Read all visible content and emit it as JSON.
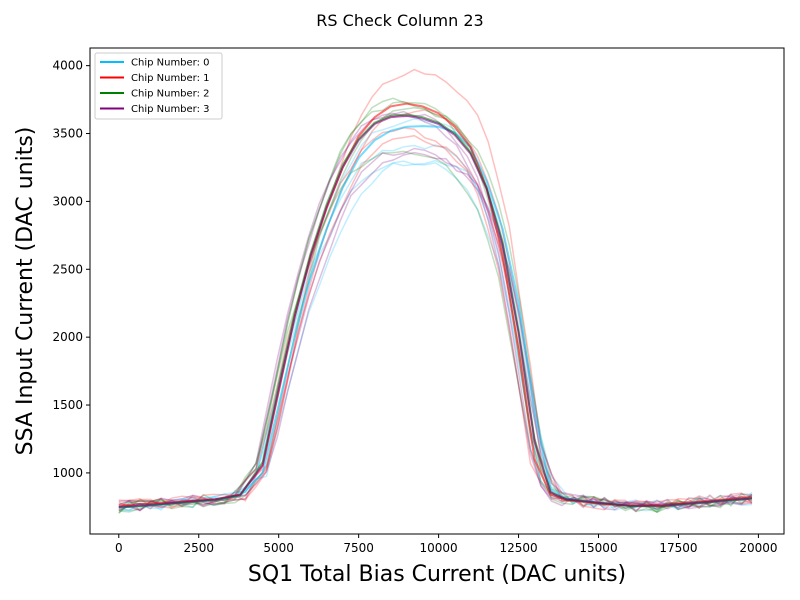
{
  "chart_data": {
    "type": "line",
    "title": "RS Check Column 23",
    "xlabel": "SQ1 Total Bias Current (DAC units)",
    "ylabel": "SSA Input Current (DAC units)",
    "xlim": [
      -900,
      20800
    ],
    "ylim": [
      550,
      4130
    ],
    "xticks": [
      0,
      2500,
      5000,
      7500,
      10000,
      12500,
      15000,
      17500,
      20000
    ],
    "yticks": [
      1000,
      1500,
      2000,
      2500,
      3000,
      3500,
      4000
    ],
    "legend_position": "top-left",
    "grid": false,
    "series": [
      {
        "name": "Chip Number: 0",
        "color": "#00bfff",
        "x": [
          0,
          1000,
          2000,
          3000,
          3800,
          4500,
          5000,
          5500,
          6000,
          6500,
          7000,
          7500,
          8000,
          8500,
          9000,
          9500,
          10000,
          10500,
          11000,
          11500,
          12000,
          12500,
          13000,
          13500,
          14000,
          15000,
          16000,
          17000,
          18000,
          19000,
          19800
        ],
        "y": [
          745,
          760,
          780,
          800,
          830,
          1000,
          1500,
          2000,
          2450,
          2800,
          3100,
          3320,
          3450,
          3520,
          3550,
          3555,
          3550,
          3510,
          3400,
          3150,
          2800,
          2250,
          1450,
          880,
          810,
          780,
          760,
          760,
          780,
          800,
          815
        ]
      },
      {
        "name": "Chip Number: 1",
        "color": "#ff0000",
        "x": [
          0,
          1000,
          2000,
          3000,
          3800,
          4500,
          5000,
          5500,
          6000,
          6500,
          7000,
          7500,
          8000,
          8500,
          9000,
          9500,
          10000,
          10500,
          11000,
          11500,
          12000,
          12500,
          13000,
          13500,
          14000,
          15000,
          16000,
          17000,
          18000,
          19000,
          19800
        ],
        "y": [
          760,
          775,
          790,
          805,
          840,
          1050,
          1600,
          2150,
          2600,
          2950,
          3250,
          3480,
          3620,
          3700,
          3720,
          3700,
          3650,
          3550,
          3400,
          3100,
          2600,
          1900,
          1100,
          840,
          800,
          775,
          760,
          765,
          785,
          805,
          820
        ]
      },
      {
        "name": "Chip Number: 2",
        "color": "#008000",
        "x": [
          0,
          1000,
          2000,
          3000,
          3800,
          4500,
          5000,
          5500,
          6000,
          6500,
          7000,
          7500,
          8000,
          8500,
          9000,
          9500,
          10000,
          10500,
          11000,
          11500,
          12000,
          12500,
          13000,
          13500,
          14000,
          15000,
          16000,
          17000,
          18000,
          19000,
          19800
        ],
        "y": [
          745,
          760,
          780,
          800,
          835,
          1080,
          1650,
          2180,
          2620,
          2980,
          3270,
          3460,
          3580,
          3630,
          3640,
          3620,
          3580,
          3500,
          3360,
          3100,
          2700,
          2050,
          1250,
          860,
          805,
          780,
          755,
          755,
          775,
          795,
          810
        ]
      },
      {
        "name": "Chip Number: 3",
        "color": "#800080",
        "x": [
          0,
          1000,
          2000,
          3000,
          3800,
          4500,
          5000,
          5500,
          6000,
          6500,
          7000,
          7500,
          8000,
          8500,
          9000,
          9500,
          10000,
          10500,
          11000,
          11500,
          12000,
          12500,
          13000,
          13500,
          14000,
          15000,
          16000,
          17000,
          18000,
          19000,
          19800
        ],
        "y": [
          750,
          765,
          785,
          805,
          840,
          1060,
          1620,
          2150,
          2600,
          2960,
          3250,
          3450,
          3570,
          3620,
          3630,
          3610,
          3570,
          3490,
          3350,
          3090,
          2680,
          2030,
          1230,
          855,
          805,
          780,
          758,
          758,
          778,
          798,
          812
        ]
      }
    ]
  }
}
